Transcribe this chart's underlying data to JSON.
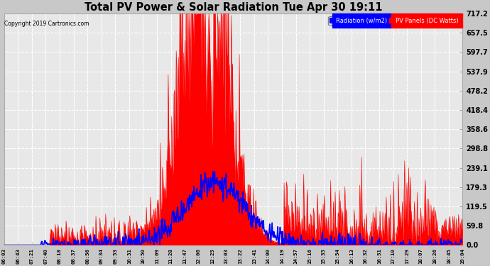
{
  "title": "Total PV Power & Solar Radiation Tue Apr 30 19:11",
  "copyright": "Copyright 2019 Cartronics.com",
  "legend_labels": [
    "Radiation (w/m2)",
    "PV Panels (DC Watts)"
  ],
  "legend_bg_colors": [
    "blue",
    "red"
  ],
  "y_ticks": [
    0.0,
    59.8,
    119.5,
    179.3,
    239.1,
    298.8,
    358.6,
    418.4,
    478.2,
    537.9,
    597.7,
    657.5,
    717.2
  ],
  "y_max": 717.2,
  "y_min": 0.0,
  "background_color": "#c8c8c8",
  "plot_bg_color": "#e8e8e8",
  "grid_color": "#ffffff",
  "title_color": "black",
  "x_labels": [
    "06:03",
    "06:43",
    "07:21",
    "07:40",
    "08:18",
    "08:37",
    "08:56",
    "09:34",
    "09:53",
    "10:31",
    "10:50",
    "11:09",
    "11:28",
    "11:47",
    "12:06",
    "12:25",
    "13:03",
    "13:22",
    "13:41",
    "14:00",
    "14:19",
    "14:57",
    "15:16",
    "15:35",
    "15:54",
    "16:13",
    "16:32",
    "16:51",
    "17:10",
    "17:29",
    "18:07",
    "18:26",
    "18:45",
    "19:04"
  ]
}
